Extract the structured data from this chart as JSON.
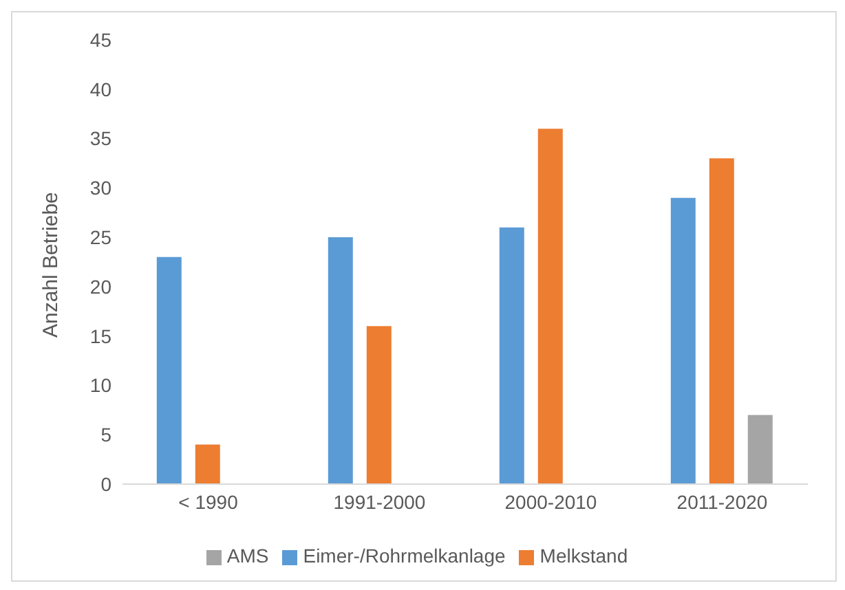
{
  "chart_data": {
    "type": "bar",
    "ylabel": "Anzahl Betriebe",
    "categories": [
      "< 1990",
      "1991-2000",
      "2000-2010",
      "2011-2020"
    ],
    "series": [
      {
        "name": "Eimer-/Rohrmelkanlage",
        "color": "#5b9bd5",
        "values": [
          23,
          25,
          26,
          29
        ]
      },
      {
        "name": "Melkstand",
        "color": "#ed7d31",
        "values": [
          4,
          16,
          36,
          33
        ]
      },
      {
        "name": "AMS",
        "color": "#a5a5a5",
        "values": [
          null,
          null,
          null,
          7
        ]
      }
    ],
    "ylim": [
      0,
      45
    ],
    "yticks": [
      0,
      5,
      10,
      15,
      20,
      25,
      30,
      35,
      40,
      45
    ],
    "grid": false,
    "legend": "bottom"
  }
}
